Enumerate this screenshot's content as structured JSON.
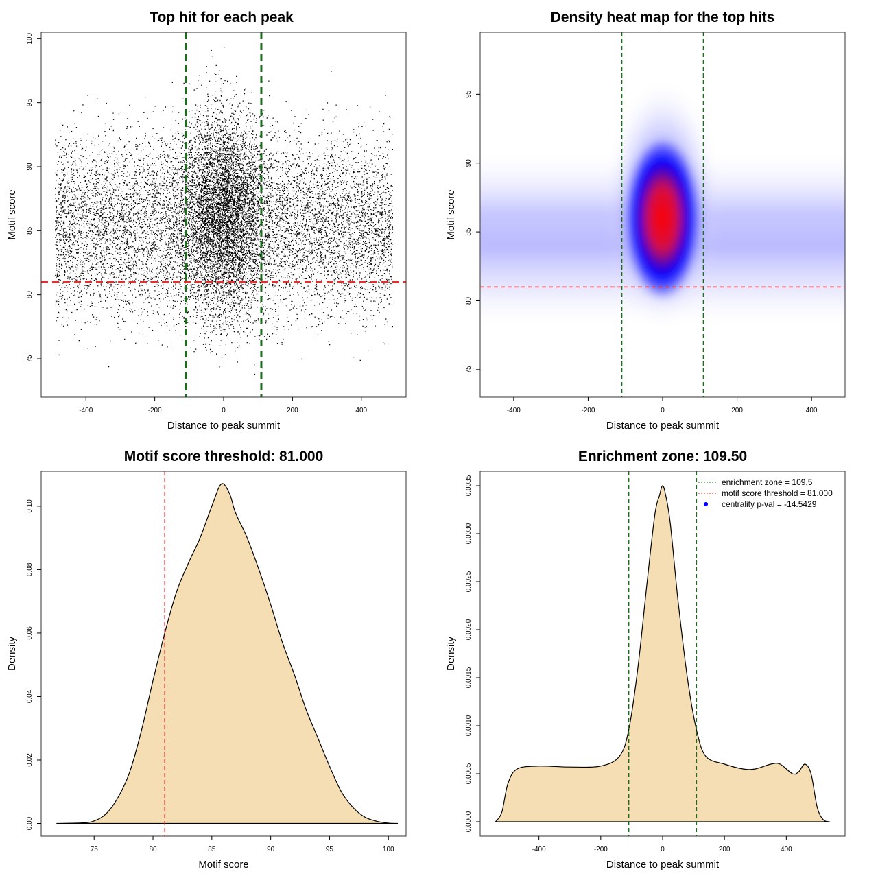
{
  "colors": {
    "threshold_line": "#e03030",
    "zone_line": "#1a6e1a",
    "fill": "#f5deb3",
    "points": "#000000",
    "heat_low": "#ffffff",
    "heat_mid": "#0000ff",
    "heat_high": "#ff0000",
    "legend_dot": "#0000ff"
  },
  "chart_data": [
    {
      "id": "scatter",
      "type": "scatter",
      "title": "Top hit for each peak",
      "xlabel": "Distance to peak summit",
      "ylabel": "Motif score",
      "xlim": [
        -530,
        530
      ],
      "ylim": [
        72,
        100.5
      ],
      "xticks": [
        -400,
        -200,
        0,
        200,
        400
      ],
      "yticks": [
        75,
        80,
        85,
        90,
        95,
        100
      ],
      "threshold": 81,
      "zone": [
        -109.5,
        109.5
      ],
      "points": {
        "n_background": 9000,
        "n_central": 5500,
        "background_x_range": [
          -490,
          490
        ],
        "score_mean": 85.5,
        "score_sd": 3.5,
        "central_x_sd": 60,
        "central_score_mean": 86.5,
        "central_score_sd": 4
      }
    },
    {
      "id": "heatmap",
      "type": "heatmap",
      "title": "Density heat map for the top hits",
      "xlabel": "Distance to peak summit",
      "ylabel": "Motif score",
      "xlim": [
        -490,
        490
      ],
      "ylim": [
        73,
        99.5
      ],
      "xticks": [
        -400,
        -200,
        0,
        200,
        400
      ],
      "yticks": [
        75,
        80,
        85,
        90,
        95
      ],
      "threshold": 81,
      "zone": [
        -109.5,
        109.5
      ],
      "peak": {
        "x": 0,
        "y": 86
      }
    },
    {
      "id": "score_density",
      "type": "area",
      "title": "Motif score threshold: 81.000",
      "xlabel": "Motif score",
      "ylabel": "Density",
      "xlim": [
        70.5,
        101.5
      ],
      "ylim": [
        -0.004,
        0.111
      ],
      "xticks": [
        75,
        80,
        85,
        90,
        95,
        100
      ],
      "yticks": [
        0.0,
        0.02,
        0.04,
        0.06,
        0.08,
        0.1
      ],
      "ytick_labels": [
        "0.00",
        "0.02",
        "0.04",
        "0.06",
        "0.08",
        "0.10"
      ],
      "threshold": 81,
      "x": [
        71.8,
        74,
        75,
        76,
        77,
        78,
        79,
        80,
        81,
        82,
        83,
        84,
        85,
        85.8,
        86.5,
        87,
        88,
        89,
        90,
        91,
        92,
        93,
        94,
        95,
        96,
        97,
        98,
        99,
        100,
        100.8
      ],
      "y": [
        0,
        0.0002,
        0.0008,
        0.003,
        0.008,
        0.016,
        0.029,
        0.045,
        0.06,
        0.073,
        0.082,
        0.09,
        0.1,
        0.107,
        0.104,
        0.098,
        0.09,
        0.08,
        0.069,
        0.057,
        0.047,
        0.036,
        0.027,
        0.018,
        0.01,
        0.005,
        0.002,
        0.0007,
        0.0001,
        0
      ]
    },
    {
      "id": "centrality",
      "type": "area",
      "title": "Enrichment zone: 109.50",
      "xlabel": "Distance to peak summit",
      "ylabel": "Density",
      "xlim": [
        -590,
        590
      ],
      "ylim": [
        -0.00015,
        0.00365
      ],
      "xticks": [
        -400,
        -200,
        0,
        200,
        400
      ],
      "yticks": [
        0,
        0.0005,
        0.001,
        0.0015,
        0.002,
        0.0025,
        0.003,
        0.0035
      ],
      "ytick_labels": [
        "0.0000",
        "0.0005",
        "0.0010",
        "0.0015",
        "0.0020",
        "0.0025",
        "0.0030",
        "0.0035"
      ],
      "zone": [
        -109.5,
        109.5
      ],
      "x": [
        -540,
        -520,
        -500,
        -470,
        -400,
        -300,
        -200,
        -140,
        -110,
        -80,
        -50,
        -25,
        -10,
        0,
        10,
        25,
        50,
        80,
        110,
        140,
        200,
        260,
        300,
        350,
        380,
        420,
        440,
        460,
        480,
        500,
        520,
        540
      ],
      "y": [
        0,
        0.0001,
        0.0004,
        0.00055,
        0.00058,
        0.00057,
        0.00058,
        0.00068,
        0.00095,
        0.0016,
        0.0025,
        0.0032,
        0.0034,
        0.0035,
        0.0034,
        0.0031,
        0.0023,
        0.0015,
        0.00095,
        0.00068,
        0.0006,
        0.00055,
        0.00055,
        0.0006,
        0.0006,
        0.0005,
        0.00052,
        0.0006,
        0.0005,
        0.00015,
        2e-05,
        0
      ],
      "legend": [
        {
          "label": "enrichment zone = 109.5",
          "style": "green-dotted-line"
        },
        {
          "label": "motif score threshold = 81.000",
          "style": "red-dotted-line"
        },
        {
          "label": "centrality p-val = -14.5429",
          "style": "blue-dot"
        }
      ]
    }
  ]
}
